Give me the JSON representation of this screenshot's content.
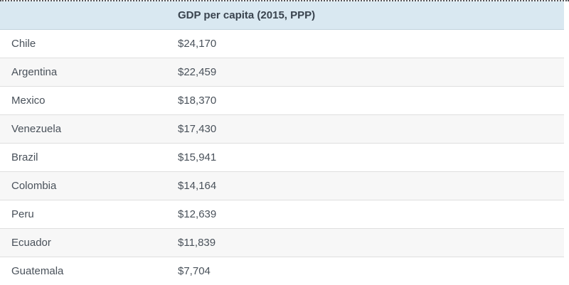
{
  "table": {
    "header": {
      "country_col_label": "",
      "value_col_label": "GDP per capita (2015, PPP)"
    },
    "rows": [
      {
        "country": "Chile",
        "value": "$24,170"
      },
      {
        "country": "Argentina",
        "value": "$22,459"
      },
      {
        "country": "Mexico",
        "value": "$18,370"
      },
      {
        "country": "Venezuela",
        "value": "$17,430"
      },
      {
        "country": "Brazil",
        "value": "$15,941"
      },
      {
        "country": "Colombia",
        "value": "$14,164"
      },
      {
        "country": "Peru",
        "value": "$12,639"
      },
      {
        "country": "Ecuador",
        "value": "$11,839"
      },
      {
        "country": "Guatemala",
        "value": "$7,704"
      }
    ]
  },
  "colors": {
    "header_background": "#d9e8f1",
    "header_text": "#39434e",
    "body_text": "#49515a",
    "row_alt_background": "#f7f7f7",
    "row_border": "#dfdfdf",
    "top_dotted_border": "#56575b"
  },
  "chart_data": {
    "type": "table",
    "title": "GDP per capita (2015, PPP)",
    "categories": [
      "Chile",
      "Argentina",
      "Mexico",
      "Venezuela",
      "Brazil",
      "Colombia",
      "Peru",
      "Ecuador",
      "Guatemala"
    ],
    "values": [
      24170,
      22459,
      18370,
      17430,
      15941,
      14164,
      12639,
      11839,
      7704
    ],
    "value_unit": "USD (PPP)",
    "layout": "two-column data table, alternating row shading, light blue header"
  }
}
